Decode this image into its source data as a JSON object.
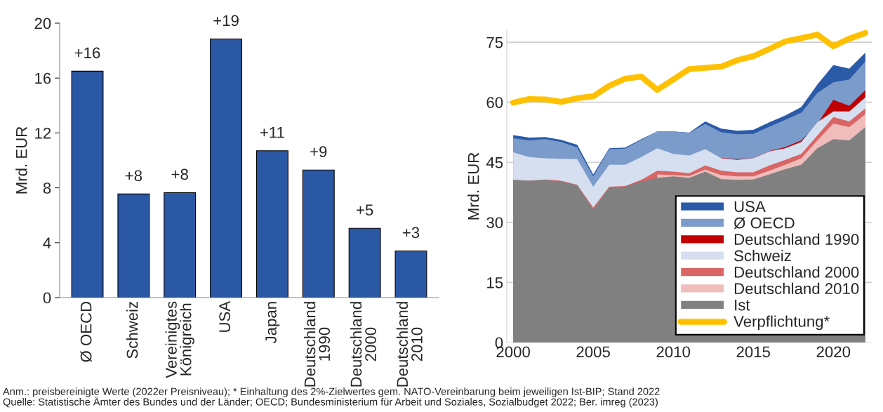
{
  "chart_data": [
    {
      "type": "bar",
      "ylabel": "Mrd. EUR",
      "categories": [
        "Ø OECD",
        "Schweiz",
        "Vereinigtes\nKönigreich",
        "USA",
        "Japan",
        "Deutschland\n1990",
        "Deutschland\n2000",
        "Deutschland\n2010"
      ],
      "values": [
        16.5,
        7.55,
        7.65,
        18.85,
        10.7,
        9.3,
        5.05,
        3.4
      ],
      "value_labels": [
        "+16",
        "+8",
        "+8",
        "+19",
        "+11",
        "+9",
        "+5",
        "+3"
      ],
      "color": "#2b58a5",
      "ylim": [
        0,
        20
      ],
      "yticks": [
        0,
        4,
        8,
        12,
        16,
        20
      ],
      "grid": false
    },
    {
      "type": "area",
      "ylabel": "Mrd. EUR",
      "x": [
        2000,
        2001,
        2002,
        2003,
        2004,
        2005,
        2006,
        2007,
        2008,
        2009,
        2010,
        2011,
        2012,
        2013,
        2014,
        2015,
        2016,
        2017,
        2018,
        2019,
        2020,
        2021,
        2022
      ],
      "series": [
        {
          "name": "USA",
          "color": "#2a5aa8",
          "values": [
            51.8,
            51.2,
            51.3,
            50.6,
            49.4,
            42.0,
            48.5,
            48.7,
            50.8,
            52.7,
            52.7,
            52.4,
            55.2,
            53.4,
            52.9,
            53.1,
            55.0,
            56.7,
            58.8,
            64.4,
            69.3,
            68.4,
            72.4
          ]
        },
        {
          "name": "Ø OECD",
          "color": "#7b9bcb",
          "values": [
            51.0,
            50.5,
            50.8,
            50.1,
            48.7,
            41.5,
            48.3,
            48.4,
            50.6,
            52.7,
            52.7,
            52.3,
            54.6,
            52.5,
            52.0,
            52.1,
            53.9,
            55.6,
            57.4,
            62.3,
            65.0,
            65.7,
            70.2
          ]
        },
        {
          "name": "Deutschland 1990",
          "color": "#c00000",
          "values": [
            null,
            null,
            null,
            null,
            null,
            null,
            null,
            null,
            null,
            null,
            null,
            null,
            null,
            46.1,
            45.8,
            46.0,
            47.8,
            48.8,
            50.5,
            54.6,
            60.6,
            59.1,
            63.0
          ]
        },
        {
          "name": "Schweiz",
          "color": "#d6dff0",
          "values": [
            47.5,
            46.3,
            46.0,
            45.9,
            45.8,
            38.9,
            44.4,
            44.4,
            46.3,
            48.5,
            47.1,
            46.7,
            48.3,
            46.0,
            45.6,
            46.0,
            47.7,
            48.5,
            50.1,
            55.0,
            57.7,
            57.7,
            61.2
          ]
        },
        {
          "name": "Deutschland 2000",
          "color": "#d96565",
          "values": [
            40.6,
            40.4,
            40.7,
            40.4,
            39.4,
            33.7,
            38.9,
            39.1,
            40.6,
            42.9,
            42.7,
            42.3,
            44.2,
            42.9,
            42.5,
            42.5,
            44.2,
            45.6,
            47.1,
            51.7,
            56.3,
            55.2,
            58.5
          ]
        },
        {
          "name": "Deutschland 2010",
          "color": "#f0bcbc",
          "values": [
            null,
            null,
            null,
            null,
            null,
            null,
            null,
            null,
            null,
            42.0,
            41.8,
            41.6,
            43.2,
            41.8,
            41.5,
            41.5,
            42.9,
            44.4,
            46.0,
            50.5,
            54.7,
            53.8,
            57.0
          ]
        },
        {
          "name": "Ist",
          "color": "#808080",
          "values": [
            40.6,
            40.4,
            40.6,
            40.2,
            39.3,
            33.2,
            38.7,
            38.9,
            40.2,
            41.1,
            41.5,
            41.1,
            42.7,
            40.8,
            40.6,
            40.7,
            42.0,
            43.3,
            44.4,
            48.5,
            50.8,
            50.5,
            53.8
          ]
        },
        {
          "name": "Verpflichtung*",
          "type": "line",
          "color": "#ffc000",
          "values": [
            59.9,
            60.8,
            60.7,
            60.1,
            61.0,
            61.5,
            64.1,
            65.9,
            66.4,
            63.1,
            65.7,
            68.3,
            68.6,
            68.9,
            70.5,
            71.5,
            73.3,
            75.2,
            76.0,
            76.9,
            74.0,
            75.9,
            77.3
          ]
        }
      ],
      "xlim": [
        1999.6,
        2022.4
      ],
      "xticks": [
        2000,
        2005,
        2010,
        2015,
        2020
      ],
      "ylim": [
        0,
        78
      ],
      "yticks": [
        0,
        15,
        30,
        45,
        60,
        75
      ],
      "grid": "y",
      "legend": "bottom right",
      "annotations": [
        "Anm.: preisbereinigte Werte (2022er Preisniveau); * Einhaltung des 2%-Zielwertes gem. NATO-Vereinbarung beim jeweiligen Ist-BIP; Stand 2022",
        "Quelle: Statistische Ämter des Bundes und der Länder; OECD; Bundesministerium für Arbeit und Soziales, Sozialbudget 2022; Ber. imreg (2023)"
      ]
    }
  ]
}
